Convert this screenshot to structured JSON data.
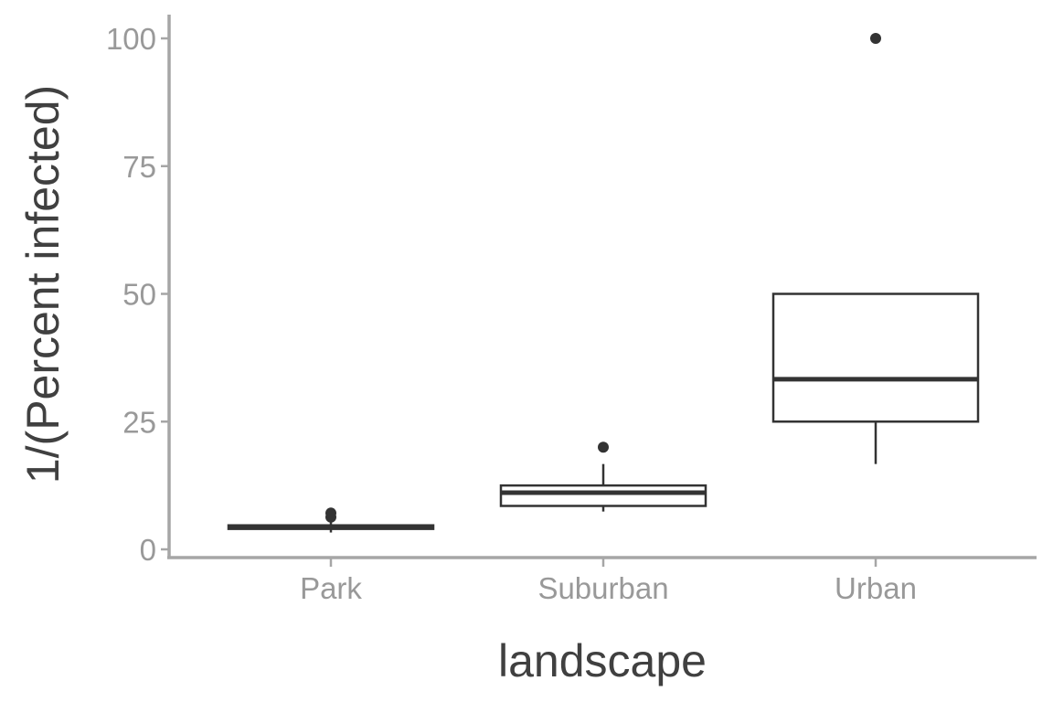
{
  "chart_data": {
    "type": "boxplot",
    "xlabel": "landscape",
    "ylabel": "1/(Percent infected)",
    "categories": [
      "Park",
      "Suburban",
      "Urban"
    ],
    "ylim": [
      -1,
      105
    ],
    "yticks": [
      0,
      25,
      50,
      75,
      100
    ],
    "ytick_labels": [
      "0",
      "25",
      "50",
      "75",
      "100"
    ],
    "boxes": [
      {
        "category": "Park",
        "whisker_low": 3.3,
        "q1": 4.0,
        "median": 4.3,
        "q3": 4.7,
        "whisker_high": 5.3,
        "outliers": [
          6.3,
          7.1
        ]
      },
      {
        "category": "Suburban",
        "whisker_low": 7.4,
        "q1": 8.5,
        "median": 11.1,
        "q3": 12.5,
        "whisker_high": 16.7,
        "outliers": [
          20
        ]
      },
      {
        "category": "Urban",
        "whisker_low": 16.7,
        "q1": 25,
        "median": 33.3,
        "q3": 50,
        "whisker_high": 50,
        "outliers": [
          100
        ]
      }
    ],
    "grid": false,
    "legend": "none",
    "colors": {
      "box_line": "#333333",
      "box_fill": "#ffffff",
      "axis": "#a6a6a6",
      "tick_text": "#999999",
      "title_text": "#404040"
    }
  }
}
